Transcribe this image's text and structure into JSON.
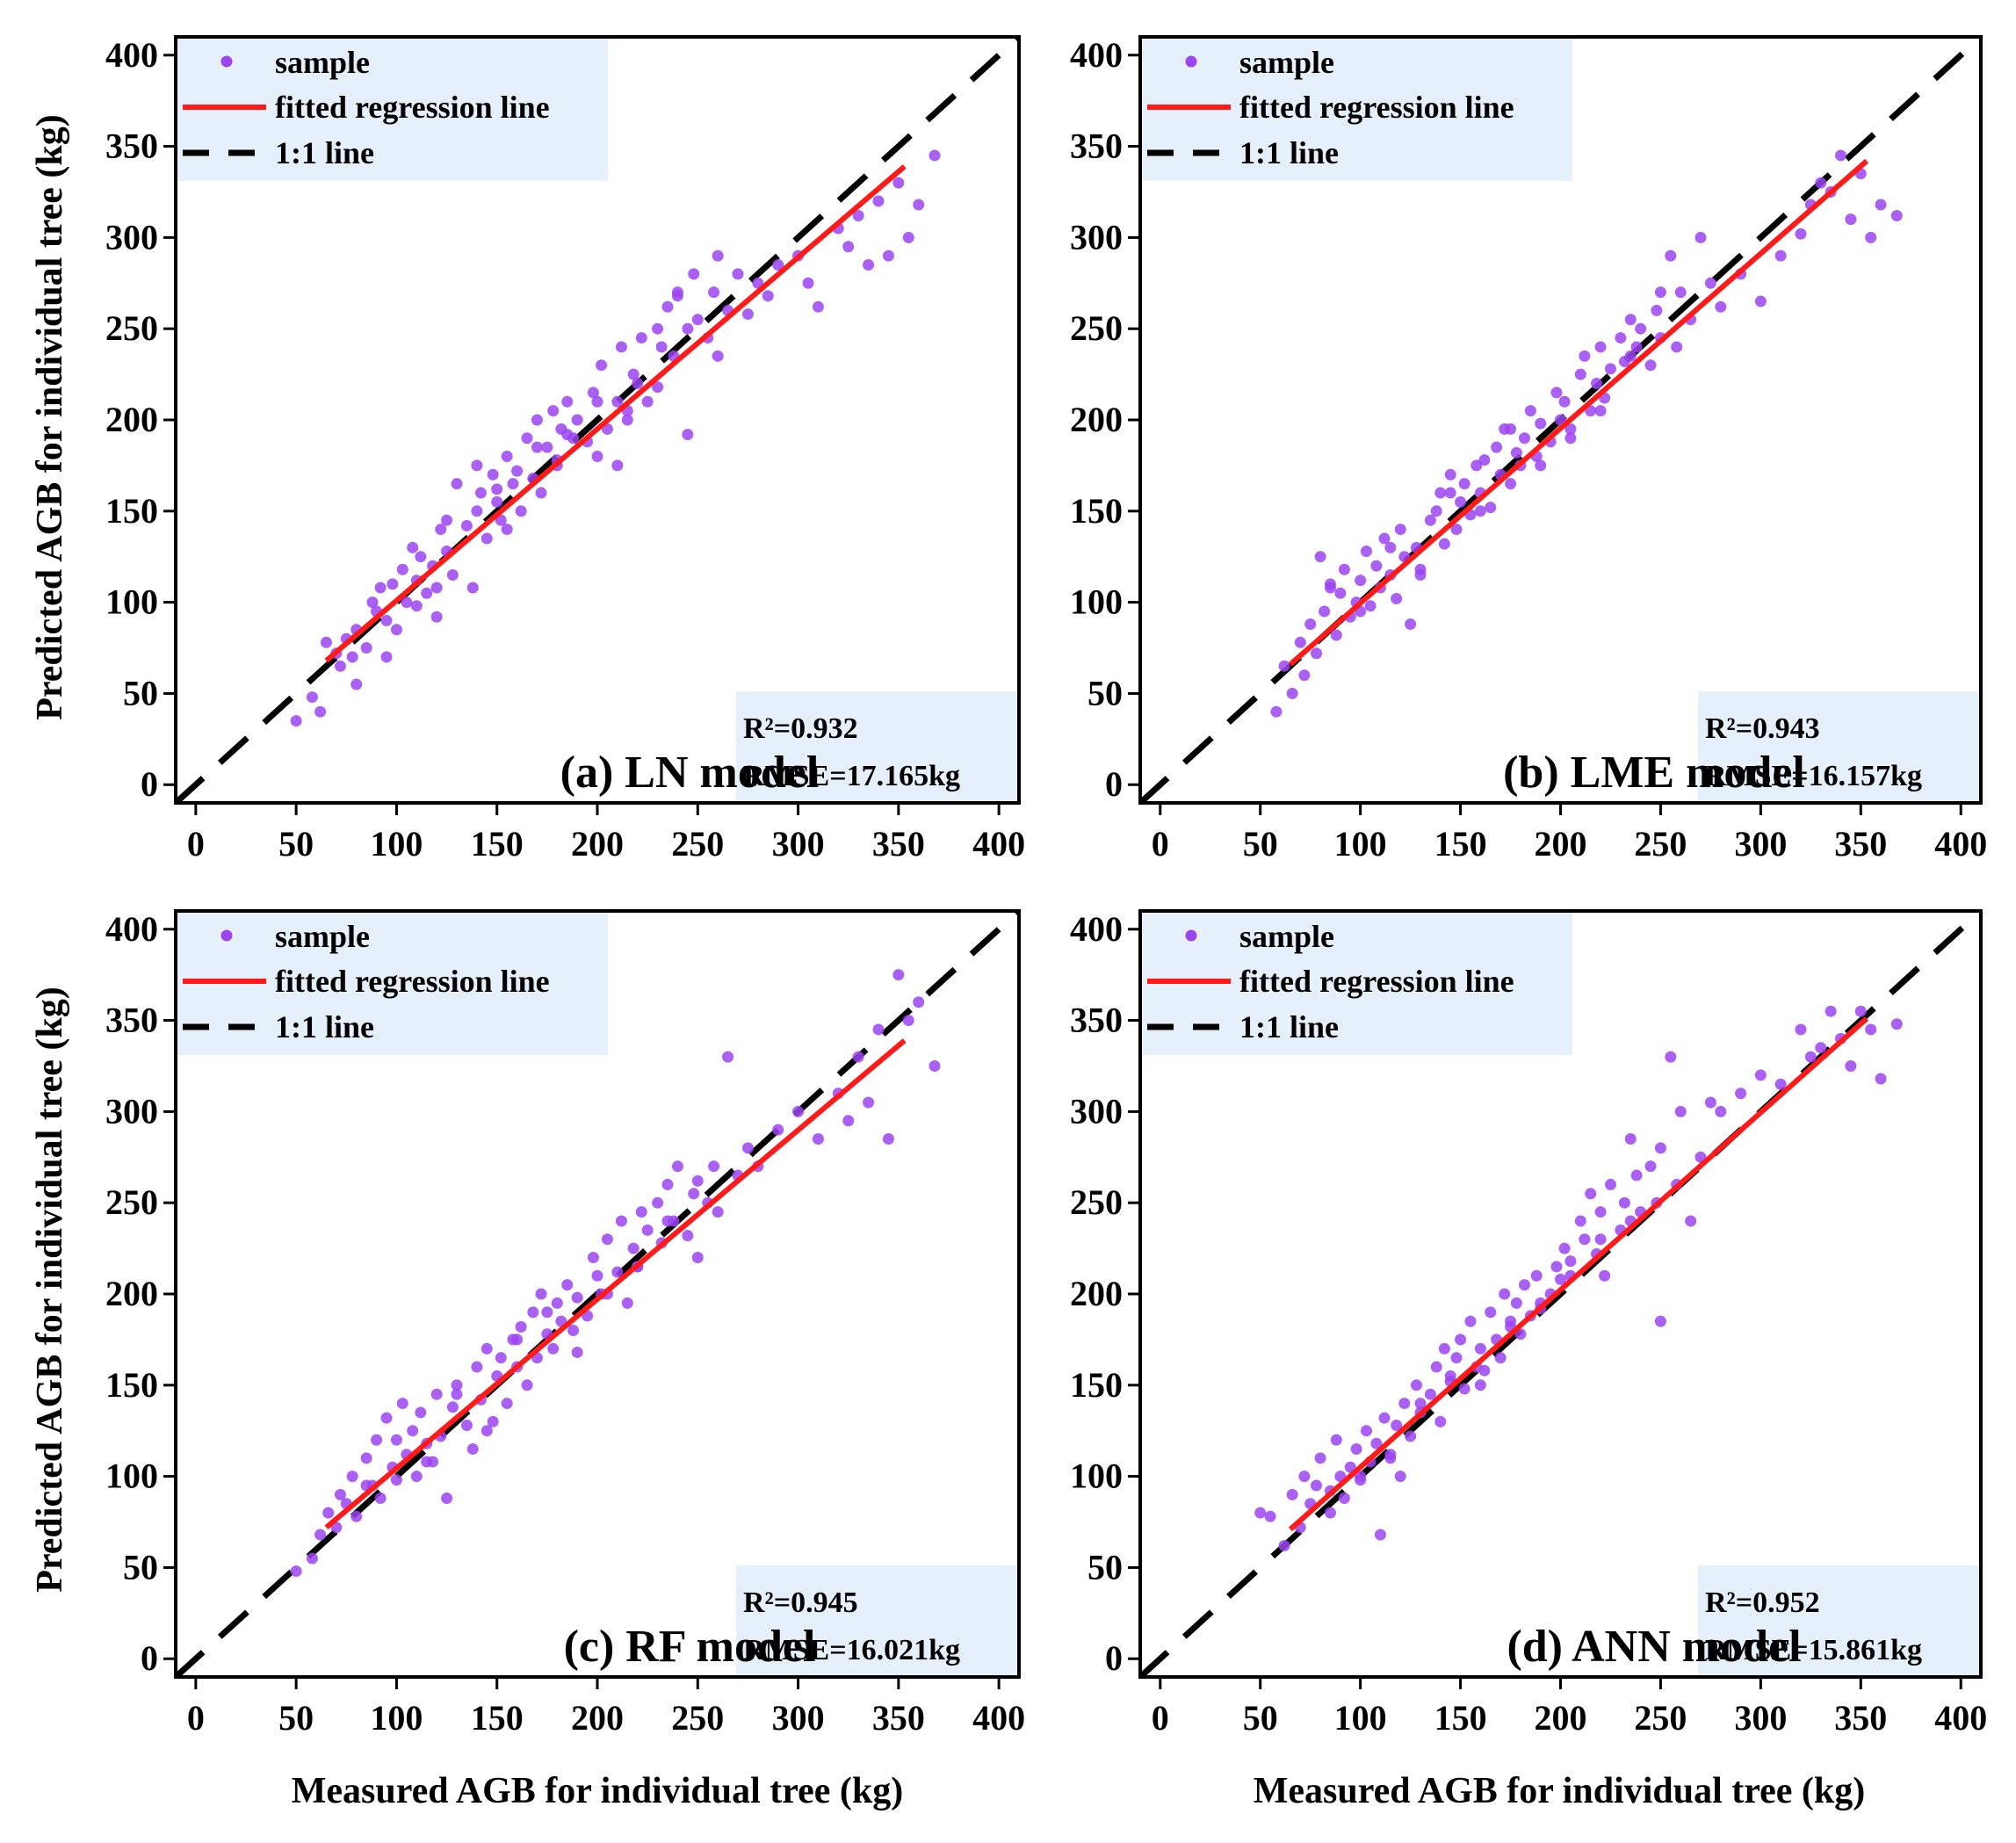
{
  "figure": {
    "y_axis_title": "Predicted AGB for individual tree (kg)",
    "x_axis_title": "Measured AGB for individual tree (kg)",
    "legend": {
      "sample": "sample",
      "fitted": "fitted regression line",
      "one_to_one": "1:1 line"
    },
    "colors": {
      "point": "#9b44f0",
      "fit_line": "#ff1a1a",
      "one_to_one_line": "#000000",
      "legend_bg": "#e6f0fa",
      "stats_bg": "#e6f0fa"
    }
  },
  "chart_data": [
    {
      "type": "scatter",
      "title": "(a) LN model",
      "xlabel": "Measured AGB for individual tree (kg)",
      "ylabel": "Predicted AGB for individual tree (kg)",
      "xlim": [
        -10,
        410
      ],
      "ylim": [
        -10,
        410
      ],
      "xticks": [
        0,
        50,
        100,
        150,
        200,
        250,
        300,
        350,
        400
      ],
      "yticks": [
        0,
        50,
        100,
        150,
        200,
        250,
        300,
        350,
        400
      ],
      "r2_text": "R²=0.932",
      "rmse_text": "RMSE=17.165kg",
      "fit_line": {
        "x": [
          65,
          353
        ],
        "y": [
          68,
          339
        ]
      },
      "one_to_one": {
        "x": [
          -10,
          410
        ],
        "y": [
          -10,
          410
        ]
      },
      "points": {
        "x": [
          50,
          58,
          62,
          65,
          70,
          72,
          75,
          78,
          80,
          85,
          88,
          90,
          92,
          95,
          98,
          100,
          103,
          105,
          108,
          110,
          112,
          115,
          118,
          120,
          122,
          125,
          128,
          130,
          135,
          138,
          140,
          142,
          145,
          148,
          150,
          152,
          155,
          158,
          160,
          162,
          165,
          168,
          170,
          172,
          175,
          178,
          180,
          182,
          185,
          188,
          190,
          195,
          198,
          200,
          202,
          205,
          210,
          212,
          215,
          218,
          220,
          222,
          225,
          230,
          232,
          235,
          238,
          240,
          245,
          248,
          250,
          255,
          258,
          260,
          265,
          270,
          275,
          280,
          285,
          290,
          300,
          305,
          310,
          320,
          325,
          330,
          335,
          340,
          345,
          350,
          355,
          360,
          368,
          80,
          95,
          110,
          125,
          140,
          155,
          170,
          185,
          200,
          215,
          230,
          245,
          260,
          120,
          150,
          180,
          210,
          240
        ],
        "y": [
          35,
          48,
          40,
          78,
          72,
          65,
          80,
          70,
          85,
          75,
          100,
          95,
          108,
          90,
          110,
          85,
          118,
          100,
          130,
          112,
          125,
          105,
          120,
          92,
          140,
          128,
          115,
          165,
          142,
          108,
          150,
          160,
          135,
          170,
          155,
          145,
          180,
          165,
          172,
          150,
          190,
          168,
          200,
          160,
          185,
          205,
          178,
          195,
          210,
          190,
          200,
          188,
          215,
          210,
          230,
          195,
          175,
          240,
          205,
          225,
          220,
          245,
          210,
          250,
          240,
          262,
          235,
          270,
          250,
          280,
          255,
          245,
          270,
          290,
          260,
          280,
          258,
          275,
          268,
          285,
          290,
          275,
          262,
          305,
          295,
          312,
          285,
          320,
          290,
          330,
          300,
          318,
          345,
          55,
          70,
          98,
          145,
          175,
          140,
          185,
          192,
          180,
          200,
          218,
          192,
          235,
          108,
          162,
          175,
          210,
          268
        ]
      }
    },
    {
      "type": "scatter",
      "title": "(b) LME model",
      "xlabel": "Measured AGB for individual tree (kg)",
      "ylabel": "Predicted AGB for individual tree (kg)",
      "xlim": [
        -10,
        410
      ],
      "ylim": [
        -10,
        410
      ],
      "xticks": [
        0,
        50,
        100,
        150,
        200,
        250,
        300,
        350,
        400
      ],
      "yticks": [
        0,
        50,
        100,
        150,
        200,
        250,
        300,
        350,
        400
      ],
      "r2_text": "R²=0.943",
      "rmse_text": "RMSE=16.157kg",
      "fit_line": {
        "x": [
          65,
          353
        ],
        "y": [
          66,
          342
        ]
      },
      "one_to_one": {
        "x": [
          -10,
          410
        ],
        "y": [
          -10,
          410
        ]
      },
      "points": {
        "x": [
          58,
          62,
          66,
          70,
          72,
          75,
          78,
          80,
          82,
          85,
          88,
          90,
          92,
          95,
          98,
          100,
          103,
          105,
          108,
          110,
          112,
          115,
          118,
          120,
          122,
          125,
          128,
          130,
          135,
          138,
          140,
          142,
          145,
          148,
          150,
          152,
          155,
          158,
          160,
          162,
          165,
          168,
          170,
          172,
          175,
          178,
          180,
          182,
          185,
          188,
          190,
          195,
          198,
          200,
          202,
          205,
          210,
          212,
          215,
          218,
          220,
          222,
          225,
          230,
          232,
          235,
          238,
          240,
          245,
          248,
          250,
          255,
          258,
          260,
          265,
          270,
          275,
          280,
          290,
          300,
          310,
          320,
          325,
          330,
          335,
          340,
          345,
          350,
          355,
          360,
          368,
          85,
          100,
          115,
          130,
          145,
          160,
          175,
          190,
          205,
          220,
          235,
          250
        ],
        "y": [
          40,
          65,
          50,
          78,
          60,
          88,
          72,
          125,
          95,
          110,
          82,
          105,
          118,
          92,
          100,
          112,
          128,
          98,
          120,
          108,
          135,
          115,
          102,
          140,
          125,
          88,
          130,
          118,
          145,
          150,
          160,
          132,
          170,
          140,
          155,
          165,
          148,
          175,
          160,
          178,
          152,
          185,
          170,
          195,
          165,
          182,
          175,
          190,
          205,
          180,
          198,
          188,
          215,
          200,
          210,
          195,
          225,
          235,
          205,
          220,
          240,
          212,
          228,
          245,
          232,
          255,
          240,
          250,
          230,
          260,
          245,
          290,
          240,
          270,
          255,
          300,
          275,
          262,
          280,
          265,
          290,
          302,
          318,
          330,
          325,
          345,
          310,
          335,
          300,
          318,
          312,
          108,
          95,
          130,
          115,
          160,
          150,
          195,
          175,
          190,
          205,
          235,
          270
        ]
      }
    },
    {
      "type": "scatter",
      "title": "(c) RF model",
      "xlabel": "Measured AGB for individual tree (kg)",
      "ylabel": "Predicted AGB for individual tree (kg)",
      "xlim": [
        -10,
        410
      ],
      "ylim": [
        -10,
        410
      ],
      "xticks": [
        0,
        50,
        100,
        150,
        200,
        250,
        300,
        350,
        400
      ],
      "yticks": [
        0,
        50,
        100,
        150,
        200,
        250,
        300,
        350,
        400
      ],
      "r2_text": "R²=0.945",
      "rmse_text": "RMSE=16.021kg",
      "fit_line": {
        "x": [
          65,
          353
        ],
        "y": [
          72,
          339
        ]
      },
      "one_to_one": {
        "x": [
          -10,
          410
        ],
        "y": [
          -10,
          410
        ]
      },
      "points": {
        "x": [
          50,
          58,
          62,
          66,
          70,
          72,
          75,
          78,
          80,
          85,
          88,
          90,
          92,
          95,
          98,
          100,
          103,
          105,
          108,
          110,
          112,
          115,
          118,
          120,
          122,
          125,
          128,
          130,
          135,
          138,
          140,
          142,
          145,
          148,
          150,
          152,
          155,
          158,
          160,
          162,
          165,
          168,
          170,
          172,
          175,
          178,
          180,
          182,
          185,
          188,
          190,
          195,
          198,
          200,
          202,
          205,
          210,
          212,
          215,
          218,
          220,
          222,
          225,
          230,
          232,
          235,
          238,
          240,
          245,
          248,
          250,
          255,
          258,
          260,
          265,
          270,
          275,
          280,
          290,
          300,
          310,
          320,
          325,
          330,
          335,
          340,
          345,
          350,
          355,
          360,
          368,
          85,
          100,
          115,
          130,
          145,
          160,
          175,
          190,
          205,
          220,
          235,
          250
        ],
        "y": [
          48,
          55,
          68,
          80,
          72,
          90,
          85,
          100,
          78,
          110,
          95,
          120,
          88,
          132,
          105,
          98,
          140,
          112,
          125,
          100,
          135,
          118,
          108,
          145,
          122,
          88,
          138,
          150,
          128,
          115,
          160,
          142,
          170,
          130,
          155,
          165,
          140,
          175,
          160,
          182,
          150,
          190,
          165,
          200,
          178,
          170,
          195,
          185,
          205,
          180,
          198,
          188,
          220,
          210,
          200,
          230,
          212,
          240,
          195,
          225,
          215,
          245,
          235,
          250,
          228,
          260,
          240,
          270,
          232,
          255,
          262,
          250,
          270,
          245,
          330,
          265,
          280,
          270,
          290,
          300,
          285,
          310,
          295,
          330,
          305,
          345,
          285,
          375,
          350,
          360,
          325,
          95,
          120,
          108,
          145,
          125,
          175,
          190,
          168,
          200,
          215,
          240,
          220
        ]
      }
    },
    {
      "type": "scatter",
      "title": "(d) ANN model",
      "xlabel": "Measured AGB for individual tree (kg)",
      "ylabel": "Predicted AGB for individual tree (kg)",
      "xlim": [
        -10,
        410
      ],
      "ylim": [
        -10,
        410
      ],
      "xticks": [
        0,
        50,
        100,
        150,
        200,
        250,
        300,
        350,
        400
      ],
      "yticks": [
        0,
        50,
        100,
        150,
        200,
        250,
        300,
        350,
        400
      ],
      "r2_text": "R²=0.952",
      "rmse_text": "RMSE=15.861kg",
      "fit_line": {
        "x": [
          65,
          353
        ],
        "y": [
          71,
          351
        ]
      },
      "one_to_one": {
        "x": [
          -10,
          410
        ],
        "y": [
          -10,
          410
        ]
      },
      "points": {
        "x": [
          50,
          55,
          62,
          66,
          70,
          72,
          75,
          78,
          80,
          85,
          88,
          90,
          92,
          95,
          98,
          100,
          103,
          105,
          108,
          110,
          112,
          115,
          118,
          120,
          122,
          125,
          128,
          130,
          135,
          138,
          140,
          142,
          145,
          148,
          150,
          152,
          155,
          158,
          160,
          162,
          165,
          168,
          170,
          172,
          175,
          178,
          180,
          182,
          185,
          188,
          190,
          195,
          198,
          200,
          202,
          205,
          210,
          212,
          215,
          218,
          220,
          222,
          225,
          230,
          232,
          235,
          238,
          240,
          245,
          248,
          250,
          255,
          258,
          260,
          265,
          270,
          275,
          280,
          290,
          300,
          310,
          320,
          325,
          330,
          335,
          340,
          345,
          350,
          355,
          360,
          368,
          85,
          100,
          115,
          130,
          145,
          160,
          175,
          190,
          205,
          220,
          235,
          250
        ],
        "y": [
          80,
          78,
          62,
          90,
          72,
          100,
          85,
          95,
          110,
          92,
          120,
          100,
          88,
          105,
          115,
          98,
          125,
          108,
          118,
          68,
          132,
          112,
          128,
          100,
          140,
          122,
          150,
          135,
          145,
          160,
          130,
          170,
          152,
          165,
          175,
          148,
          185,
          160,
          170,
          158,
          190,
          175,
          165,
          200,
          182,
          195,
          178,
          205,
          188,
          210,
          192,
          200,
          215,
          208,
          225,
          218,
          240,
          230,
          255,
          222,
          245,
          210,
          260,
          235,
          250,
          285,
          265,
          245,
          270,
          250,
          280,
          330,
          260,
          300,
          240,
          275,
          305,
          300,
          310,
          320,
          315,
          345,
          330,
          335,
          355,
          340,
          325,
          355,
          345,
          318,
          348,
          80,
          100,
          110,
          140,
          155,
          150,
          185,
          195,
          210,
          230,
          240,
          185
        ]
      }
    }
  ]
}
